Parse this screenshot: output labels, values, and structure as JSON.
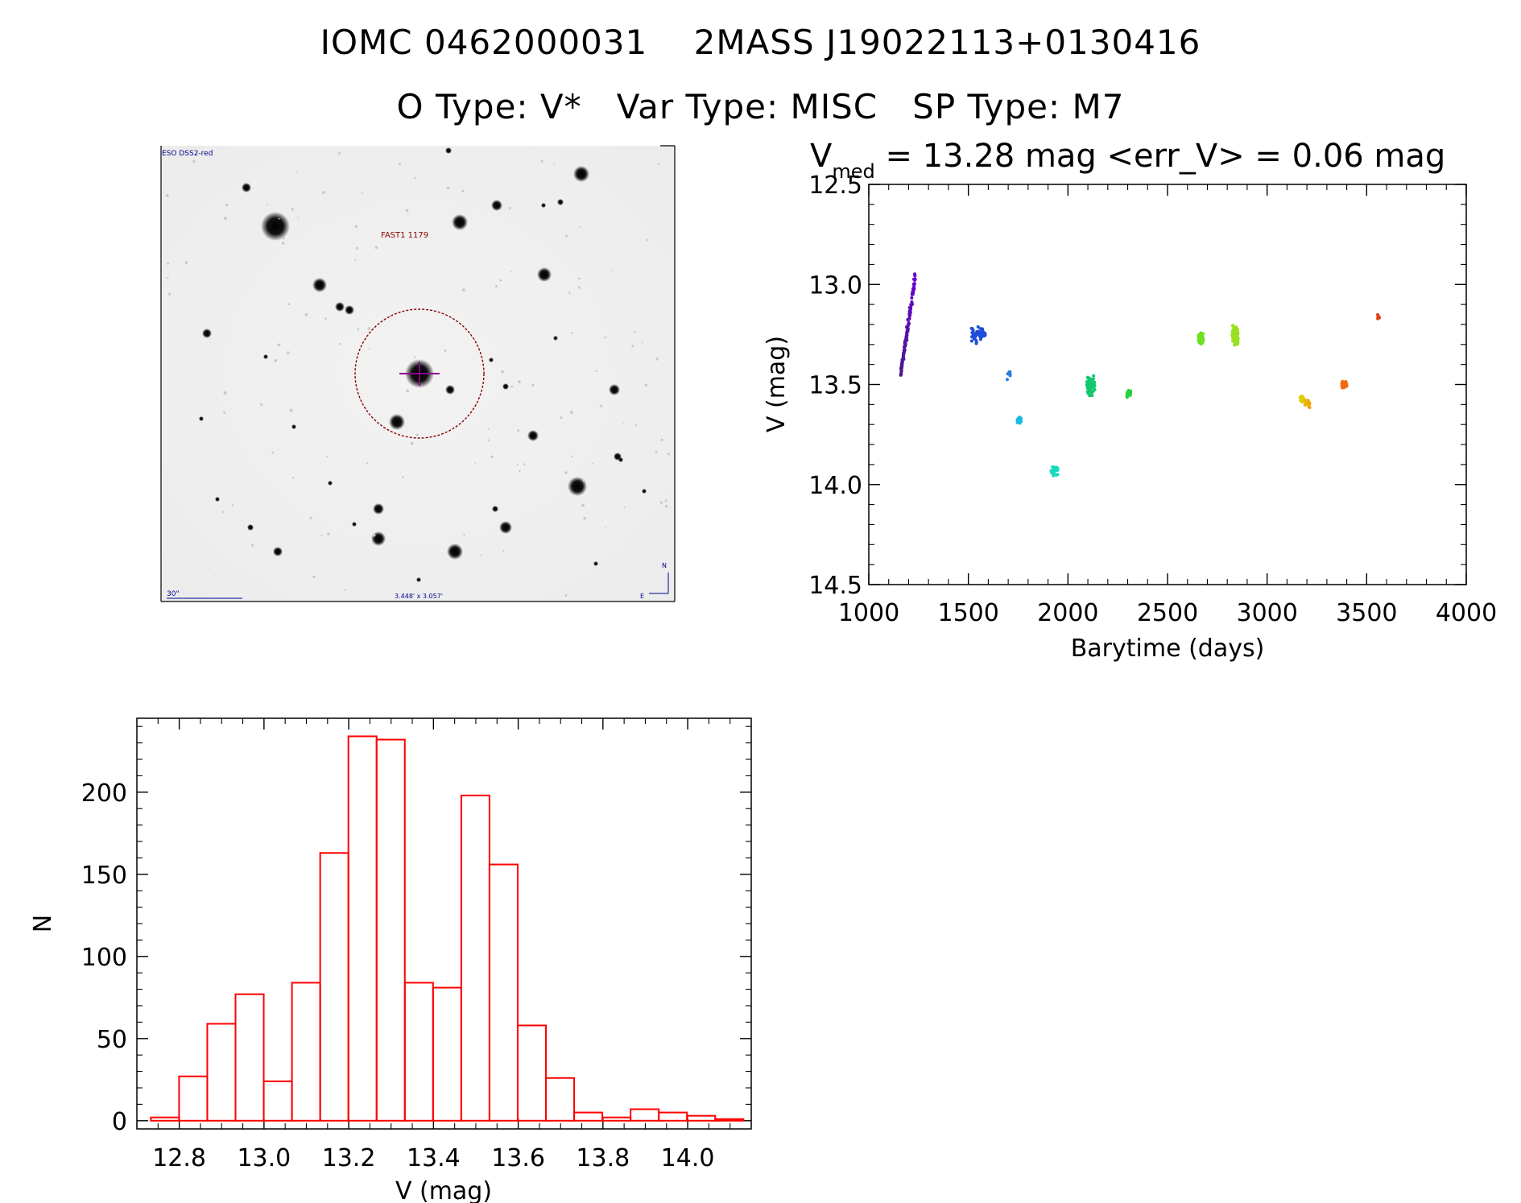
{
  "header": {
    "line1": "IOMC 0462000031    2MASS J19022113+0130416",
    "line2": "O Type: V*   Var Type: MISC   SP Type: M7"
  },
  "finder": {
    "survey_label": "ESO DSS2-red",
    "object_label": "FAST1 1179",
    "scale_label": "30\"",
    "fov_label": "3.448' x 3.057'",
    "north_label": "N",
    "east_label": "E",
    "circle_color": "#8b0000",
    "marker_color": "#8a008a",
    "text_color": "#00008b"
  },
  "lightcurve": {
    "title_main": "V",
    "title_sub": "med",
    "title_rest": " = 13.28 mag <err_V> = 0.06 mag"
  },
  "chart_data": [
    {
      "type": "scatter",
      "xlabel": "Barytime (days)",
      "ylabel": "V (mag)",
      "xlim": [
        1000,
        4000
      ],
      "ylim": [
        14.5,
        12.5
      ],
      "y_inverted": true,
      "xticks": [
        1000,
        1500,
        2000,
        2500,
        3000,
        3500,
        4000
      ],
      "yticks": [
        12.5,
        13.0,
        13.5,
        14.0,
        14.5
      ],
      "ytick_labels": [
        "12.5",
        "13.0",
        "13.5",
        "14.0",
        "14.5"
      ],
      "grid": false,
      "clusters": [
        {
          "x_start": 1160,
          "x_end": 1235,
          "y_start": 13.45,
          "y_end": 12.95,
          "y_spread": 0.12,
          "n": 120,
          "color": "#4a1a8c",
          "color_end": "#6a00d0"
        },
        {
          "x_start": 1515,
          "x_end": 1585,
          "y_start": 13.25,
          "y_end": 13.25,
          "y_spread": 0.14,
          "n": 55,
          "color": "#1f4fd8"
        },
        {
          "x_start": 1695,
          "x_end": 1710,
          "y_start": 13.45,
          "y_end": 13.45,
          "y_spread": 0.09,
          "n": 8,
          "color": "#2a7de0"
        },
        {
          "x_start": 1745,
          "x_end": 1765,
          "y_start": 13.68,
          "y_end": 13.68,
          "y_spread": 0.08,
          "n": 18,
          "color": "#19b9e6"
        },
        {
          "x_start": 1915,
          "x_end": 1950,
          "y_start": 13.93,
          "y_end": 13.93,
          "y_spread": 0.12,
          "n": 25,
          "color": "#19d9c0"
        },
        {
          "x_start": 2095,
          "x_end": 2135,
          "y_start": 13.5,
          "y_end": 13.5,
          "y_spread": 0.18,
          "n": 80,
          "color": "#14c870"
        },
        {
          "x_start": 2295,
          "x_end": 2315,
          "y_start": 13.54,
          "y_end": 13.54,
          "y_spread": 0.08,
          "n": 35,
          "color": "#2ad040"
        },
        {
          "x_start": 2655,
          "x_end": 2680,
          "y_start": 13.27,
          "y_end": 13.27,
          "y_spread": 0.11,
          "n": 45,
          "color": "#6ee020"
        },
        {
          "x_start": 2825,
          "x_end": 2855,
          "y_start": 13.25,
          "y_end": 13.25,
          "y_spread": 0.18,
          "n": 70,
          "color": "#98e020"
        },
        {
          "x_start": 3165,
          "x_end": 3215,
          "y_start": 13.57,
          "y_end": 13.6,
          "y_spread": 0.09,
          "n": 40,
          "color": "#d6d800",
          "color_end": "#f0a000"
        },
        {
          "x_start": 3375,
          "x_end": 3400,
          "y_start": 13.5,
          "y_end": 13.5,
          "y_spread": 0.06,
          "n": 30,
          "color": "#f06a10"
        },
        {
          "x_start": 3555,
          "x_end": 3565,
          "y_start": 13.16,
          "y_end": 13.16,
          "y_spread": 0.05,
          "n": 8,
          "color": "#e04010"
        }
      ]
    },
    {
      "type": "bar",
      "xlabel": "V (mag)",
      "ylabel": "N",
      "xlim": [
        12.7,
        14.15
      ],
      "ylim": [
        -5,
        245
      ],
      "xticks": [
        12.8,
        13.0,
        13.2,
        13.4,
        13.6,
        13.8,
        14.0
      ],
      "xtick_labels": [
        "12.8",
        "13.0",
        "13.2",
        "13.4",
        "13.6",
        "13.8",
        "14.0"
      ],
      "yticks": [
        0,
        50,
        100,
        150,
        200
      ],
      "ytick_labels": [
        "0",
        "50",
        "100",
        "150",
        "200"
      ],
      "bin_start": 12.733,
      "bin_width": 0.0666,
      "values": [
        2,
        27,
        59,
        77,
        24,
        84,
        163,
        234,
        232,
        84,
        81,
        198,
        156,
        58,
        26,
        5,
        2,
        7,
        5,
        3,
        1
      ],
      "color": "#ff0000"
    }
  ]
}
